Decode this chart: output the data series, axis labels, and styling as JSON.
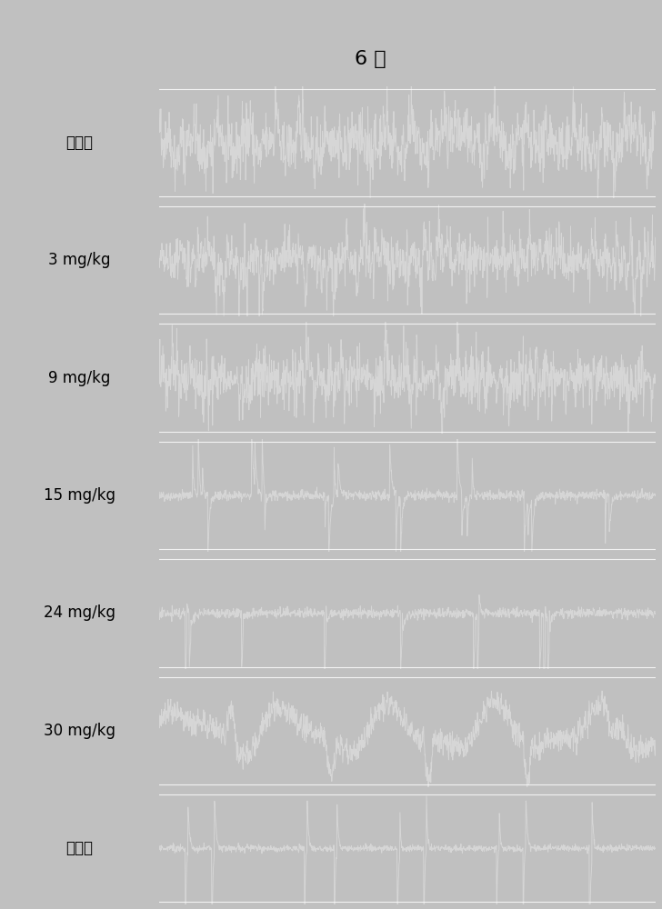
{
  "title": "6 秒",
  "title_fontsize": 16,
  "bg_color": "#c0c0c0",
  "panel_bg": "#222222",
  "trace_color": "#d8d8d8",
  "labels": [
    "给药前",
    "3 mg/kg",
    "9 mg/kg",
    "15 mg/kg",
    "24 mg/kg",
    "30 mg/kg",
    "异丙酚"
  ],
  "label_fontsize": 12,
  "n_panels": 7,
  "seed": 42,
  "n_points": 1500
}
